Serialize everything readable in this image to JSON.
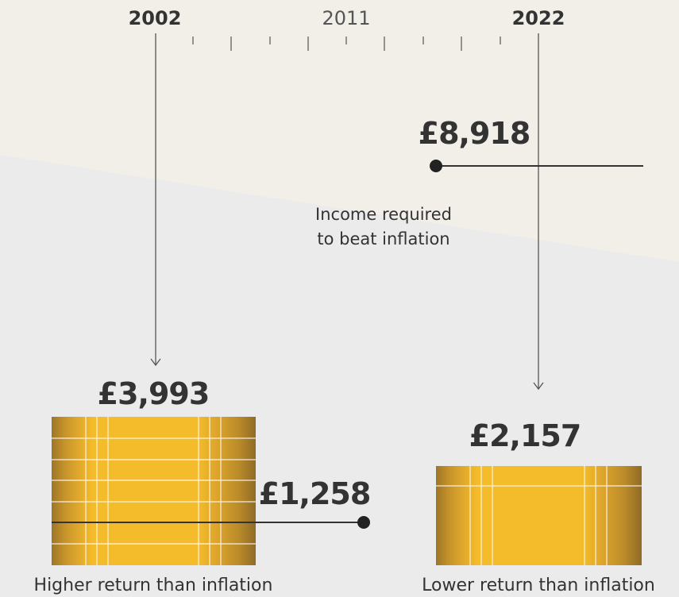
{
  "timeline": {
    "start": "2002",
    "middle": "2011",
    "end": "2022"
  },
  "income_required": {
    "amount": "£8,918",
    "label": [
      "Income required",
      "to beat inflation"
    ]
  },
  "start_case": {
    "amount": "£3,993",
    "income": "£1,258",
    "caption": "Higher return than inflation"
  },
  "end_case": {
    "amount": "£2,157",
    "caption": "Lower return than inflation"
  }
}
